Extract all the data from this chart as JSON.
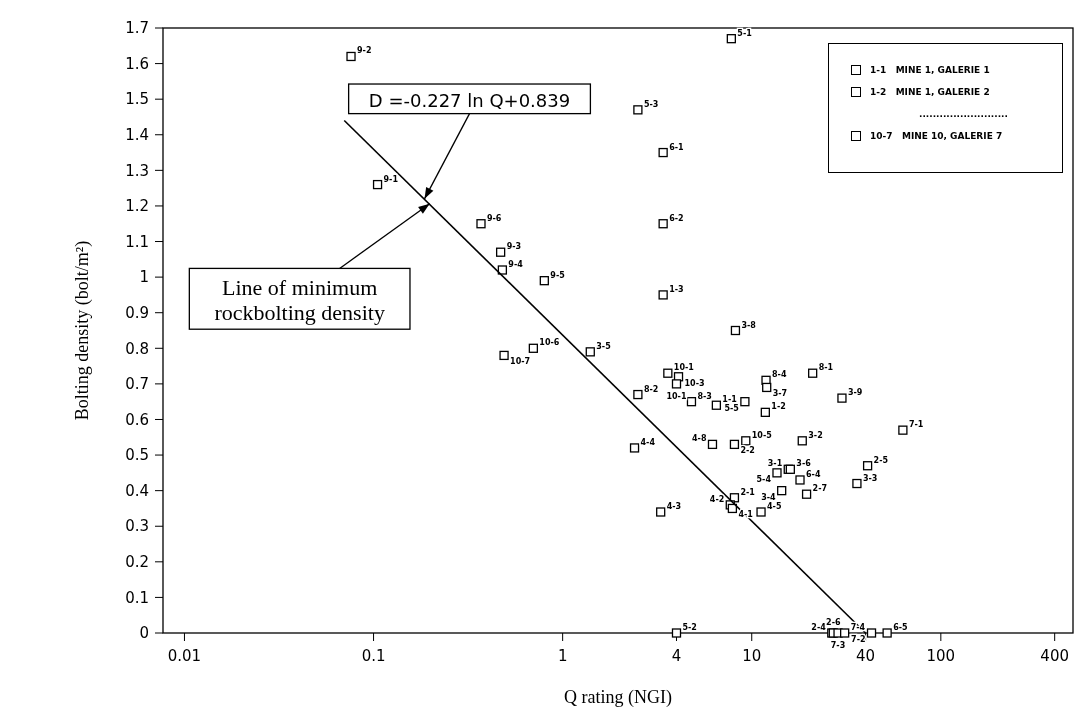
{
  "chart_data": {
    "type": "scatter",
    "xlabel": "Q rating (NGI)",
    "ylabel": "Bolting density (bolt/m²)",
    "log": "x",
    "marker": "square",
    "xlim": [
      0.0077,
      500
    ],
    "xticks": [
      0.01,
      0.1,
      1,
      4,
      10,
      40,
      100,
      400
    ],
    "ylim": [
      0,
      1.7
    ],
    "yticks": [
      0,
      0.1,
      0.2,
      0.3,
      0.4,
      0.5,
      0.6,
      0.7,
      0.8,
      0.9,
      1,
      1.1,
      1.2,
      1.3,
      1.4,
      1.5,
      1.6,
      1.7
    ],
    "x": [
      0.076,
      0.105,
      0.37,
      0.47,
      0.48,
      0.8,
      2.5,
      3.4,
      3.4,
      3.4,
      7.8,
      8.2,
      0.49,
      0.7,
      1.4,
      2.5,
      2.4,
      3.3,
      4,
      3.6,
      4.1,
      4.0,
      4.8,
      6.5,
      9.2,
      11.9,
      12,
      21,
      11.8,
      30,
      63,
      9.3,
      8.1,
      6.2,
      18.5,
      15.6,
      16,
      13.6,
      18,
      41,
      36,
      14.4,
      19.5,
      8.1,
      7.7,
      7.9,
      11.2,
      26.5,
      27,
      28.6,
      31,
      43,
      52
    ],
    "series": [
      {
        "color": "#000000",
        "values": [
          1.62,
          1.26,
          1.15,
          1.07,
          1.02,
          0.99,
          1.47,
          1.35,
          1.15,
          0.95,
          1.67,
          0.85,
          0.78,
          0.8,
          0.79,
          0.67,
          0.52,
          0.34,
          0,
          0.73,
          0.72,
          0.7,
          0.65,
          0.64,
          0.65,
          0.71,
          0.69,
          0.73,
          0.62,
          0.66,
          0.57,
          0.54,
          0.53,
          0.53,
          0.54,
          0.46,
          0.46,
          0.45,
          0.43,
          0.47,
          0.42,
          0.4,
          0.39,
          0.38,
          0.36,
          0.35,
          0.34,
          0,
          0,
          0,
          0,
          0,
          0
        ],
        "value_labels": [
          "9-2",
          "9-1",
          "9-6",
          "9-3",
          "9-4",
          "9-5",
          "5-3",
          "6-1",
          "6-2",
          "1-3",
          "5-1",
          "3-8",
          "10-7",
          "10-6",
          "3-5",
          "8-2",
          "4-4",
          "4-3",
          "5-2",
          "10-1",
          "10-3",
          "10-1",
          "8-3",
          "1-1",
          "5-5",
          "8-4",
          "3-7",
          "8-1",
          "1-2",
          "3-9",
          "7-1",
          "10-5",
          "2-2",
          "4-8",
          "3-2",
          "3-1",
          "3-6",
          "5-4",
          "6-4",
          "2-5",
          "3-3",
          "3-4",
          "2-7",
          "2-1",
          "4-2",
          "4-1",
          "4-5",
          "2-4",
          "2-6",
          "7-3",
          "7-4",
          "7-2",
          "6-5"
        ]
      },
      {
        "type": "line",
        "marker": "none",
        "color": "#000000",
        "x": [
          0.07,
          40
        ],
        "values": [
          1.44,
          0
        ]
      }
    ],
    "annotations": [
      {
        "text": "D   =-0.227 ln Q+0.839",
        "x": 0.186,
        "y": 1.22
      },
      {
        "text": "Line of minimum rockbolting density",
        "x": 0.198,
        "y": 1.206
      },
      "1-1   MINE 1, GALERIE 1",
      "1-2   MINE 1, GALERIE 2",
      "..........................",
      "10-7   MINE 10, GALERIE 7"
    ]
  }
}
